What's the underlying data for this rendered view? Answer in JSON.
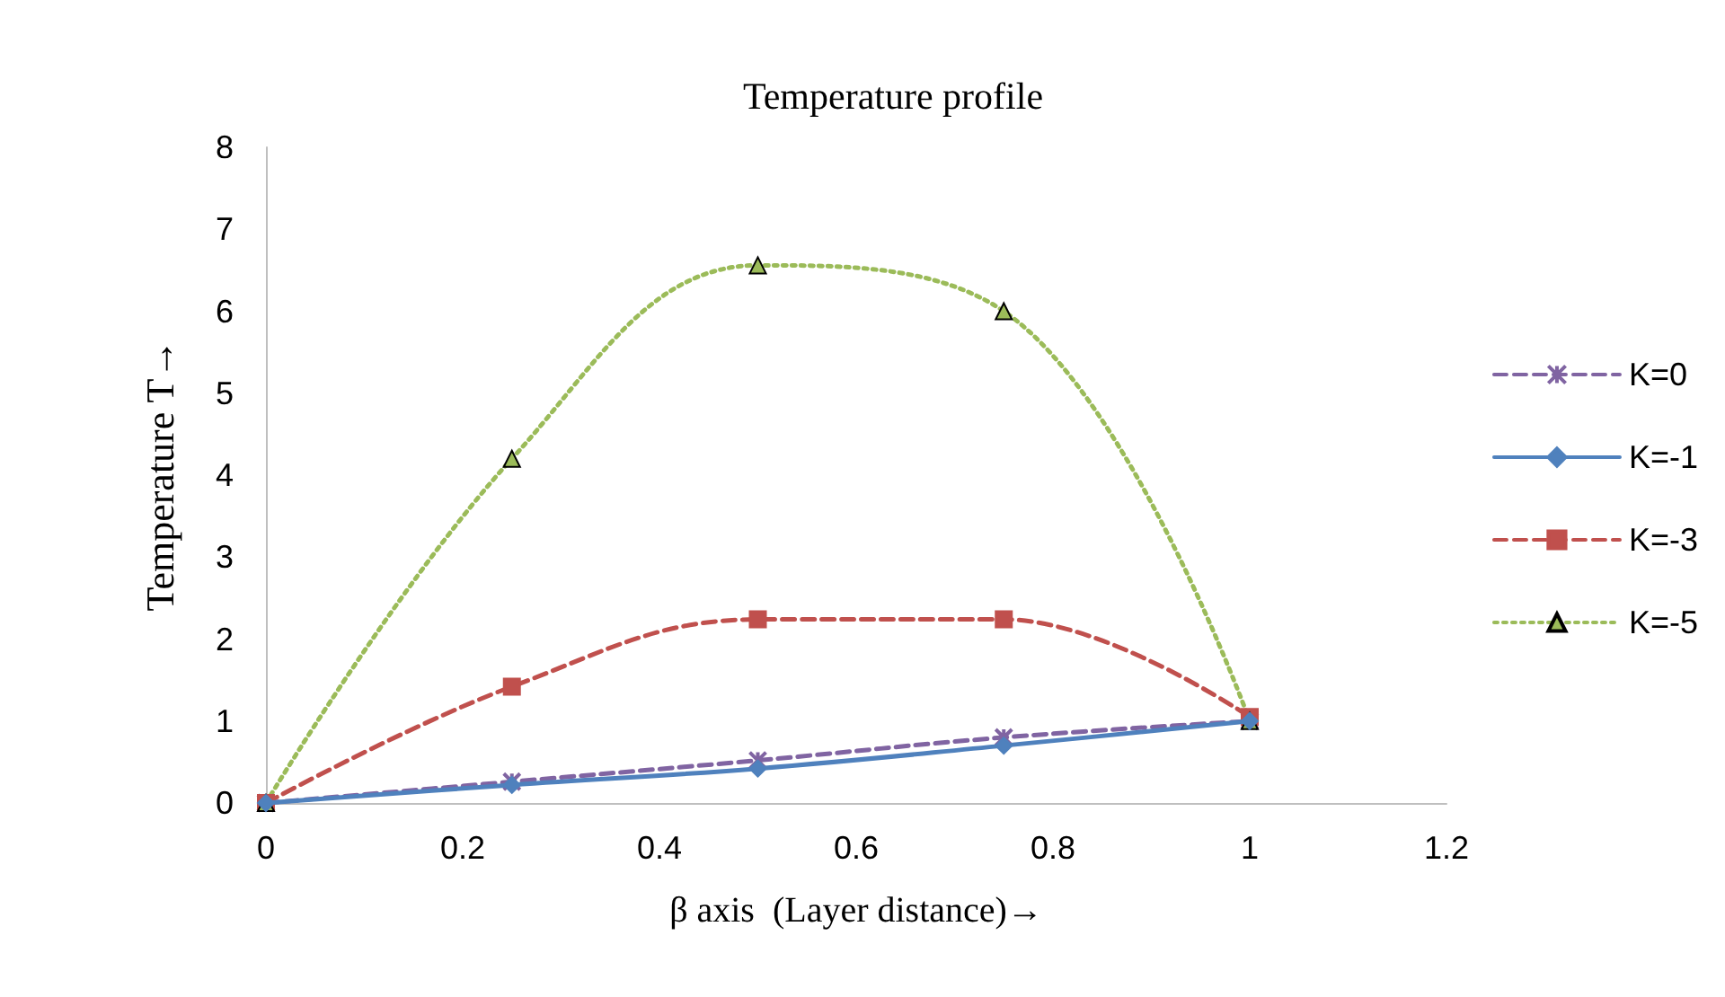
{
  "chart_data": {
    "type": "line",
    "title": "Temperature profile",
    "xlabel": "β axis  (Layer distance)→",
    "ylabel": "Temperature T→",
    "x": [
      0,
      0.25,
      0.5,
      0.75,
      1
    ],
    "series": [
      {
        "name": "K=0",
        "color": "#8064a2",
        "marker": "cross",
        "line_style": "dashed",
        "values": [
          0,
          0.26,
          0.52,
          0.8,
          1
        ]
      },
      {
        "name": "K=-1",
        "color": "#4f81bd",
        "marker": "diamond",
        "line_style": "solid",
        "values": [
          0,
          0.22,
          0.42,
          0.7,
          1
        ]
      },
      {
        "name": "K=-3",
        "color": "#c0504d",
        "marker": "square",
        "line_style": "dashed",
        "values": [
          0,
          1.42,
          2.24,
          2.24,
          1.05
        ]
      },
      {
        "name": "K=-5",
        "color": "#9bbb59",
        "marker": "triangle",
        "line_style": "dotted",
        "values": [
          0,
          4.2,
          6.56,
          6.0,
          1.0
        ]
      }
    ],
    "xlim": [
      0,
      1.2
    ],
    "xticks": [
      0,
      0.2,
      0.4,
      0.6,
      0.8,
      1,
      1.2
    ],
    "ylim": [
      0,
      8
    ],
    "yticks": [
      0,
      1,
      2,
      3,
      4,
      5,
      6,
      7,
      8
    ],
    "grid": false,
    "legend": "right"
  }
}
